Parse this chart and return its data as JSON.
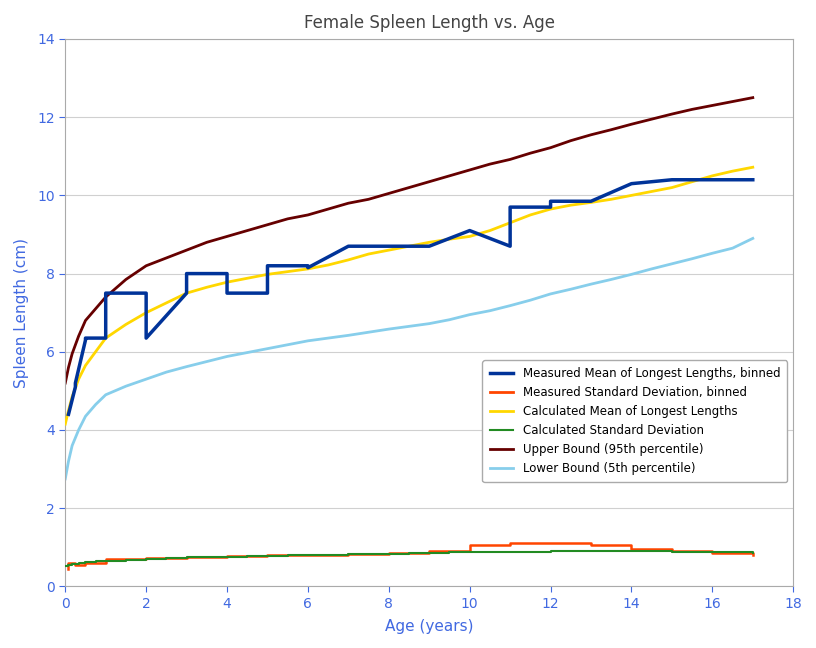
{
  "title": "Female Spleen Length vs. Age",
  "xlabel": "Age (years)",
  "ylabel": "Spleen Length (cm)",
  "xlim": [
    0,
    18
  ],
  "ylim": [
    0,
    14
  ],
  "xticks": [
    0,
    2,
    4,
    6,
    8,
    10,
    12,
    14,
    16,
    18
  ],
  "yticks": [
    0,
    2,
    4,
    6,
    8,
    10,
    12,
    14
  ],
  "bg_color": "#ffffff",
  "grid_color": "#d0d0d0",
  "measured_mean_binned_x": [
    0.08,
    0.25,
    0.25,
    0.5,
    0.5,
    1.0,
    1.0,
    2.0,
    2.0,
    3.0,
    3.0,
    4.0,
    4.0,
    5.0,
    5.0,
    6.0,
    6.0,
    7.0,
    7.0,
    8.0,
    8.0,
    9.0,
    9.0,
    10.0,
    10.0,
    11.0,
    11.0,
    12.0,
    12.0,
    13.0,
    13.0,
    14.0,
    14.0,
    15.0,
    15.0,
    16.0,
    16.0,
    17.0
  ],
  "measured_mean_binned_y": [
    4.4,
    5.1,
    5.2,
    6.3,
    6.35,
    6.35,
    7.5,
    7.5,
    6.35,
    7.5,
    8.0,
    8.0,
    7.5,
    7.5,
    8.2,
    8.2,
    8.15,
    8.7,
    8.7,
    8.7,
    8.7,
    8.7,
    8.7,
    9.1,
    9.1,
    8.7,
    9.7,
    9.7,
    9.85,
    9.85,
    9.85,
    10.3,
    10.3,
    10.4,
    10.4,
    10.4,
    10.4,
    10.4
  ],
  "measured_std_binned_x": [
    0.08,
    0.08,
    0.25,
    0.5,
    1.0,
    2.0,
    3.0,
    4.0,
    5.0,
    6.0,
    7.0,
    8.0,
    9.0,
    10.0,
    11.0,
    12.0,
    13.0,
    14.0,
    15.0,
    16.0,
    17.0
  ],
  "measured_std_binned_y": [
    0.45,
    0.6,
    0.55,
    0.6,
    0.7,
    0.72,
    0.75,
    0.77,
    0.8,
    0.8,
    0.82,
    0.85,
    0.9,
    1.05,
    1.1,
    1.1,
    1.05,
    0.95,
    0.9,
    0.85,
    0.8
  ],
  "calc_mean_x": [
    0.0,
    0.08,
    0.17,
    0.33,
    0.5,
    0.75,
    1.0,
    1.5,
    2.0,
    2.5,
    3.0,
    3.5,
    4.0,
    4.5,
    5.0,
    5.5,
    6.0,
    6.5,
    7.0,
    7.5,
    8.0,
    8.5,
    9.0,
    9.5,
    10.0,
    10.5,
    11.0,
    11.5,
    12.0,
    12.5,
    13.0,
    13.5,
    14.0,
    14.5,
    15.0,
    15.5,
    16.0,
    16.5,
    17.0
  ],
  "calc_mean_y": [
    4.15,
    4.5,
    4.85,
    5.3,
    5.65,
    6.0,
    6.35,
    6.7,
    7.0,
    7.25,
    7.5,
    7.65,
    7.78,
    7.88,
    7.98,
    8.05,
    8.12,
    8.22,
    8.35,
    8.5,
    8.6,
    8.7,
    8.8,
    8.88,
    8.95,
    9.1,
    9.3,
    9.5,
    9.65,
    9.75,
    9.82,
    9.9,
    10.0,
    10.1,
    10.2,
    10.35,
    10.5,
    10.62,
    10.72
  ],
  "calc_std_x": [
    0.0,
    0.08,
    0.17,
    0.33,
    0.5,
    0.75,
    1.0,
    1.5,
    2.0,
    2.5,
    3.0,
    3.5,
    4.0,
    4.5,
    5.0,
    5.5,
    6.0,
    6.5,
    7.0,
    7.5,
    8.0,
    8.5,
    9.0,
    9.5,
    10.0,
    10.5,
    11.0,
    11.5,
    12.0,
    12.5,
    13.0,
    13.5,
    14.0,
    14.5,
    15.0,
    15.5,
    16.0,
    16.5,
    17.0
  ],
  "calc_std_y": [
    0.52,
    0.55,
    0.57,
    0.6,
    0.62,
    0.64,
    0.66,
    0.68,
    0.7,
    0.72,
    0.74,
    0.75,
    0.76,
    0.77,
    0.78,
    0.79,
    0.8,
    0.81,
    0.82,
    0.83,
    0.84,
    0.85,
    0.86,
    0.87,
    0.88,
    0.88,
    0.89,
    0.89,
    0.9,
    0.9,
    0.9,
    0.9,
    0.9,
    0.9,
    0.89,
    0.89,
    0.88,
    0.87,
    0.86
  ],
  "upper_bound_x": [
    0.0,
    0.08,
    0.17,
    0.33,
    0.5,
    0.75,
    1.0,
    1.5,
    2.0,
    2.5,
    3.0,
    3.5,
    4.0,
    4.5,
    5.0,
    5.5,
    6.0,
    6.5,
    7.0,
    7.5,
    8.0,
    8.5,
    9.0,
    9.5,
    10.0,
    10.5,
    11.0,
    11.5,
    12.0,
    12.5,
    13.0,
    13.5,
    14.0,
    14.5,
    15.0,
    15.5,
    16.0,
    16.5,
    17.0
  ],
  "upper_bound_y": [
    5.2,
    5.6,
    5.95,
    6.4,
    6.8,
    7.1,
    7.4,
    7.85,
    8.2,
    8.4,
    8.6,
    8.8,
    8.95,
    9.1,
    9.25,
    9.4,
    9.5,
    9.65,
    9.8,
    9.9,
    10.05,
    10.2,
    10.35,
    10.5,
    10.65,
    10.8,
    10.92,
    11.08,
    11.22,
    11.4,
    11.55,
    11.68,
    11.82,
    11.95,
    12.08,
    12.2,
    12.3,
    12.4,
    12.5
  ],
  "lower_bound_x": [
    0.0,
    0.08,
    0.17,
    0.33,
    0.5,
    0.75,
    1.0,
    1.5,
    2.0,
    2.5,
    3.0,
    3.5,
    4.0,
    4.5,
    5.0,
    5.5,
    6.0,
    6.5,
    7.0,
    7.5,
    8.0,
    8.5,
    9.0,
    9.5,
    10.0,
    10.5,
    11.0,
    11.5,
    12.0,
    12.5,
    13.0,
    13.5,
    14.0,
    14.5,
    15.0,
    15.5,
    16.0,
    16.5,
    17.0
  ],
  "lower_bound_y": [
    2.75,
    3.2,
    3.6,
    4.0,
    4.35,
    4.65,
    4.9,
    5.12,
    5.3,
    5.48,
    5.62,
    5.75,
    5.88,
    5.98,
    6.08,
    6.18,
    6.28,
    6.35,
    6.42,
    6.5,
    6.58,
    6.65,
    6.72,
    6.82,
    6.95,
    7.05,
    7.18,
    7.32,
    7.48,
    7.6,
    7.73,
    7.85,
    7.98,
    8.12,
    8.25,
    8.38,
    8.52,
    8.65,
    8.9
  ],
  "colors": {
    "measured_mean_binned": "#003399",
    "measured_std_binned": "#FF4500",
    "calc_mean": "#FFD700",
    "calc_std": "#228B22",
    "upper_bound": "#660000",
    "lower_bound": "#87CEEB"
  },
  "title_color": "#444444",
  "axis_label_color": "#4169E1",
  "tick_label_color": "#4169E1",
  "legend_labels": [
    "Measured Mean of Longest Lengths, binned",
    "Measured Standard Deviation, binned",
    "Calculated Mean of Longest Lengths",
    "Calculated Standard Deviation",
    "Upper Bound (95th percentile)",
    "Lower Bound (5th percentile)"
  ]
}
